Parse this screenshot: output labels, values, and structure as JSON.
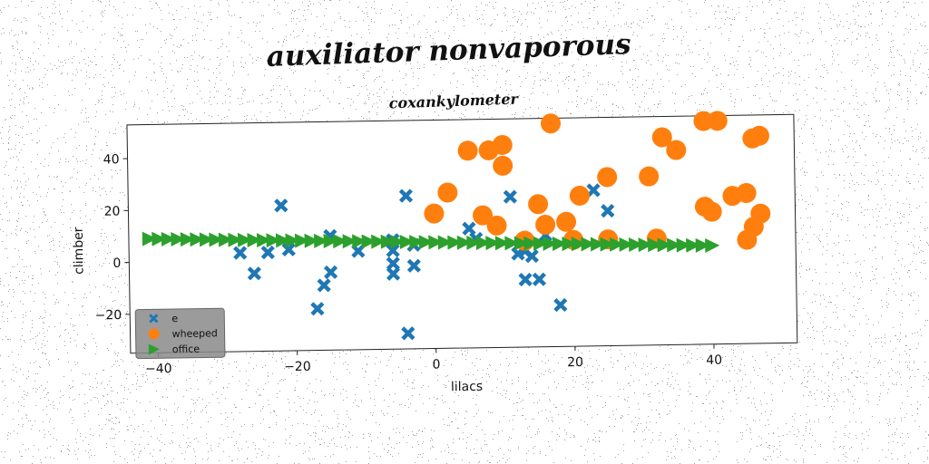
{
  "chart_data": {
    "type": "scatter",
    "suptitle": "auxiliator nonvaporous",
    "title": "coxankylometer",
    "xlabel": "lilacs",
    "ylabel": "climber",
    "xlim": [
      -44,
      52
    ],
    "ylim": [
      -35,
      53
    ],
    "xticks": [
      "−40",
      "−20",
      "0",
      "20",
      "40"
    ],
    "yticks": [
      "−20",
      "0",
      "20",
      "40"
    ],
    "xtick_values": [
      -40,
      -20,
      0,
      20,
      40
    ],
    "ytick_values": [
      -20,
      0,
      20,
      40
    ],
    "grid": false,
    "legend_position": "lower-left",
    "series": [
      {
        "name": "e",
        "marker": "x",
        "color": "#1f77b4",
        "points": [
          [
            -28,
            3
          ],
          [
            -26,
            -5
          ],
          [
            -24,
            3
          ],
          [
            -22,
            21
          ],
          [
            -21,
            4
          ],
          [
            -17,
            -19
          ],
          [
            -16,
            -10
          ],
          [
            -15,
            -5
          ],
          [
            -15,
            9
          ],
          [
            -11,
            3
          ],
          [
            -6,
            7
          ],
          [
            -6,
            3
          ],
          [
            -6,
            -2
          ],
          [
            -6,
            -6
          ],
          [
            -4,
            24
          ],
          [
            -4,
            -29
          ],
          [
            -3,
            5
          ],
          [
            -3,
            -3
          ],
          [
            5,
            11
          ],
          [
            6,
            7
          ],
          [
            11,
            23
          ],
          [
            12,
            1
          ],
          [
            13,
            2
          ],
          [
            13,
            -9
          ],
          [
            14,
            0
          ],
          [
            15,
            -9
          ],
          [
            16,
            8
          ],
          [
            18,
            -19
          ],
          [
            23,
            25
          ],
          [
            25,
            17
          ]
        ]
      },
      {
        "name": "wheeped",
        "marker": "o",
        "color": "#ff7f0e",
        "points": [
          [
            0,
            17
          ],
          [
            2,
            25
          ],
          [
            5,
            41
          ],
          [
            7,
            16
          ],
          [
            8,
            41
          ],
          [
            9,
            12
          ],
          [
            10,
            43
          ],
          [
            10,
            35
          ],
          [
            13,
            6
          ],
          [
            15,
            20
          ],
          [
            16,
            12
          ],
          [
            17,
            51
          ],
          [
            19,
            13
          ],
          [
            20,
            6
          ],
          [
            21,
            23
          ],
          [
            25,
            30
          ],
          [
            25,
            6
          ],
          [
            31,
            30
          ],
          [
            32,
            6
          ],
          [
            33,
            45
          ],
          [
            35,
            40
          ],
          [
            39,
            18
          ],
          [
            40,
            16
          ],
          [
            39,
            51
          ],
          [
            41,
            51
          ],
          [
            43,
            22
          ],
          [
            45,
            23
          ],
          [
            46,
            44
          ],
          [
            47,
            45
          ],
          [
            47,
            15
          ],
          [
            46,
            10
          ],
          [
            45,
            5
          ]
        ]
      },
      {
        "name": "office",
        "marker": ">",
        "color": "#2ca02c",
        "x_start": -41,
        "x_end": 40,
        "y_start": 9,
        "y_end": 3,
        "count": 60
      }
    ]
  }
}
